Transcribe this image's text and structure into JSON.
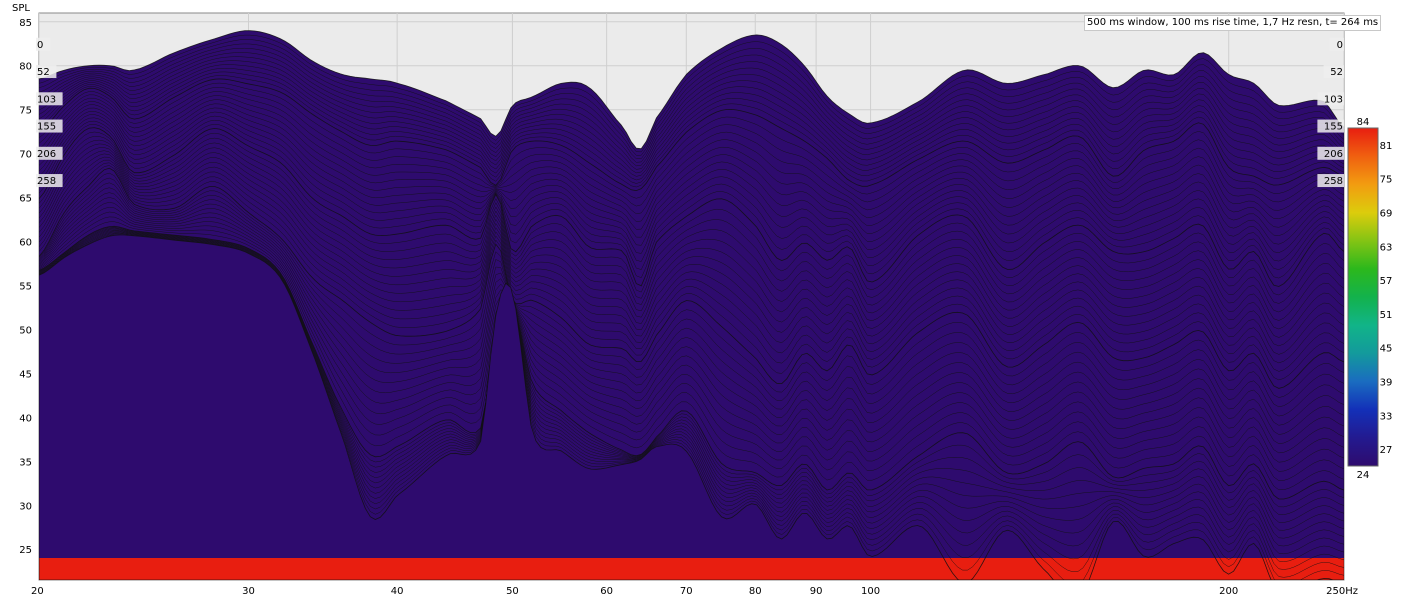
{
  "chart_data": {
    "type": "waterfall",
    "ylabel": "SPL",
    "x_unit_label": "Hz",
    "xscale": "log",
    "xlim": [
      20,
      250
    ],
    "ylim": [
      21.5,
      86
    ],
    "x_tick_values": [
      20,
      30,
      40,
      50,
      60,
      70,
      80,
      90,
      100,
      200,
      250
    ],
    "x_tick_labels": [
      "20",
      "30",
      "40",
      "50",
      "60",
      "70",
      "80",
      "90",
      "100",
      "200",
      "250Hz"
    ],
    "y_ticks": [
      85,
      80,
      75,
      70,
      65,
      60,
      55,
      50,
      45,
      40,
      35,
      30,
      25
    ],
    "info_text": "500 ms window, 100 ms rise time,  1,7 Hz resn, t= 264 ms",
    "time_slice_labels": [
      "0",
      "52",
      "103",
      "155",
      "206",
      "258"
    ],
    "colorbar": {
      "range": [
        24,
        84
      ],
      "labels": [
        "84",
        "81",
        "75",
        "69",
        "63",
        "57",
        "51",
        "45",
        "39",
        "33",
        "27",
        "24"
      ],
      "colors": [
        "#2e0b6e",
        "#231a90",
        "#1330b8",
        "#1a6cc0",
        "#139a9c",
        "#11b488",
        "#13b24c",
        "#2cb81c",
        "#84c414",
        "#dccc0c",
        "#f29c10",
        "#f06010",
        "#e81e10"
      ]
    },
    "series": [
      {
        "time_ms": 0,
        "x": [
          20,
          21,
          22,
          23,
          24,
          26,
          28,
          30,
          32,
          34,
          36,
          38,
          40,
          44,
          47,
          48.5,
          50,
          52,
          55,
          58,
          62,
          64,
          66,
          70,
          75,
          80,
          84,
          88,
          92,
          96,
          100,
          110,
          120,
          130,
          140,
          150,
          160,
          170,
          180,
          190,
          200,
          210,
          220,
          240,
          250
        ],
        "values": [
          78.5,
          79.5,
          80,
          80,
          79.5,
          81.5,
          83,
          84,
          83,
          80.5,
          79,
          78.5,
          78,
          76,
          74,
          72,
          75.5,
          76.5,
          78,
          77.5,
          73,
          70.5,
          74,
          79,
          82,
          83.5,
          82.5,
          80,
          76.5,
          74.5,
          73.5,
          76,
          79.5,
          78,
          79,
          80,
          77.5,
          79.5,
          79,
          81.5,
          79,
          78,
          75.5,
          76,
          73
        ]
      },
      {
        "time_ms": 52,
        "x": [
          20,
          21,
          22,
          23,
          24,
          26,
          28,
          30,
          32,
          34,
          36,
          38,
          40,
          44,
          47,
          48.5,
          50,
          52,
          55,
          58,
          62,
          64,
          66,
          70,
          75,
          80,
          84,
          88,
          92,
          96,
          100,
          110,
          120,
          130,
          140,
          150,
          160,
          170,
          180,
          190,
          200,
          210,
          220,
          240,
          250
        ],
        "values": [
          73,
          76,
          78,
          77,
          74.5,
          77,
          79,
          78.5,
          77.5,
          75,
          73,
          71.5,
          72,
          71,
          69,
          67,
          71,
          72,
          71.5,
          69.5,
          67,
          66.5,
          69,
          73,
          75.5,
          75,
          73.5,
          72,
          70,
          67.5,
          67,
          70,
          72,
          69.5,
          71,
          72.5,
          68,
          71,
          72,
          74,
          69,
          68,
          67,
          69,
          68
        ]
      },
      {
        "time_ms": 103,
        "x": [
          20,
          21,
          22,
          23,
          24,
          26,
          28,
          30,
          32,
          34,
          36,
          38,
          40,
          44,
          47,
          48.5,
          50,
          52,
          55,
          58,
          62,
          64,
          66,
          70,
          75,
          80,
          84,
          88,
          92,
          96,
          100,
          110,
          120,
          130,
          140,
          150,
          160,
          170,
          180,
          190,
          200,
          210,
          220,
          240,
          250
        ],
        "values": [
          66,
          71,
          74,
          73,
          69,
          71,
          74,
          72,
          70,
          66,
          64,
          62,
          62,
          63,
          61.5,
          66.5,
          60,
          63,
          64,
          60.5,
          60,
          56,
          61,
          64,
          66,
          63,
          59,
          61,
          59,
          60.5,
          56.5,
          62,
          64,
          58,
          61,
          63,
          60,
          60,
          61.5,
          63,
          58,
          60,
          56,
          62,
          60
        ]
      },
      {
        "time_ms": 155,
        "x": [
          20,
          21,
          22,
          23,
          24,
          26,
          28,
          30,
          32,
          34,
          36,
          38,
          40,
          44,
          47,
          48.5,
          50,
          52,
          55,
          58,
          62,
          64,
          66,
          70,
          75,
          80,
          84,
          88,
          92,
          96,
          100,
          110,
          120,
          130,
          140,
          150,
          160,
          170,
          180,
          190,
          200,
          210,
          220,
          240,
          250
        ],
        "values": [
          60,
          65,
          68,
          70,
          66,
          65.5,
          68,
          65,
          62,
          57.5,
          55,
          52.5,
          51,
          51.5,
          54,
          61.5,
          55,
          55,
          53,
          50,
          49.5,
          48,
          51,
          55,
          52,
          48.5,
          45.5,
          49,
          47,
          50,
          46.5,
          51.5,
          53.5,
          47.5,
          50,
          52.5,
          48.5,
          48.5,
          50,
          51.5,
          47,
          49,
          45,
          49,
          48
        ]
      },
      {
        "time_ms": 206,
        "x": [
          20,
          21,
          22,
          23,
          24,
          26,
          28,
          30,
          32,
          34,
          36,
          38,
          40,
          44,
          47,
          48.5,
          50,
          52,
          55,
          58,
          62,
          64,
          66,
          70,
          75,
          80,
          84,
          88,
          92,
          96,
          100,
          110,
          120,
          130,
          140,
          150,
          160,
          170,
          180,
          190,
          200,
          210,
          220,
          240,
          250
        ],
        "values": [
          59,
          61,
          63,
          64,
          63.5,
          63,
          62.5,
          61.5,
          58.5,
          50.5,
          43,
          38,
          39,
          42,
          41,
          52,
          55,
          46,
          43,
          40.5,
          38.5,
          38,
          40,
          43,
          37,
          36,
          34.5,
          37,
          34,
          36,
          34,
          38,
          40.5,
          36,
          37,
          39.5,
          35.5,
          36.5,
          37,
          39,
          34.5,
          37,
          33,
          35,
          34
        ]
      },
      {
        "time_ms": 258,
        "x": [
          20,
          21,
          22,
          23,
          24,
          26,
          28,
          30,
          32,
          34,
          36,
          38,
          40,
          44,
          47,
          48.5,
          50,
          52,
          55,
          58,
          62,
          64,
          66,
          70,
          75,
          80,
          84,
          88,
          92,
          96,
          100,
          110,
          120,
          130,
          140,
          150,
          160,
          170,
          180,
          190,
          200,
          210,
          220,
          240,
          250
        ],
        "values": [
          59,
          61,
          62.5,
          63.5,
          63.5,
          63,
          62.5,
          61.5,
          58.5,
          50,
          40.5,
          31.5,
          34,
          38.5,
          40,
          55,
          57,
          41,
          39,
          37,
          37.5,
          38,
          39.5,
          39,
          31.5,
          33,
          29,
          32,
          29,
          30.5,
          27,
          30.5,
          24,
          30,
          25.5,
          22.5,
          31,
          27,
          28.5,
          29,
          25,
          28.5,
          23,
          24.5,
          24
        ]
      }
    ]
  }
}
